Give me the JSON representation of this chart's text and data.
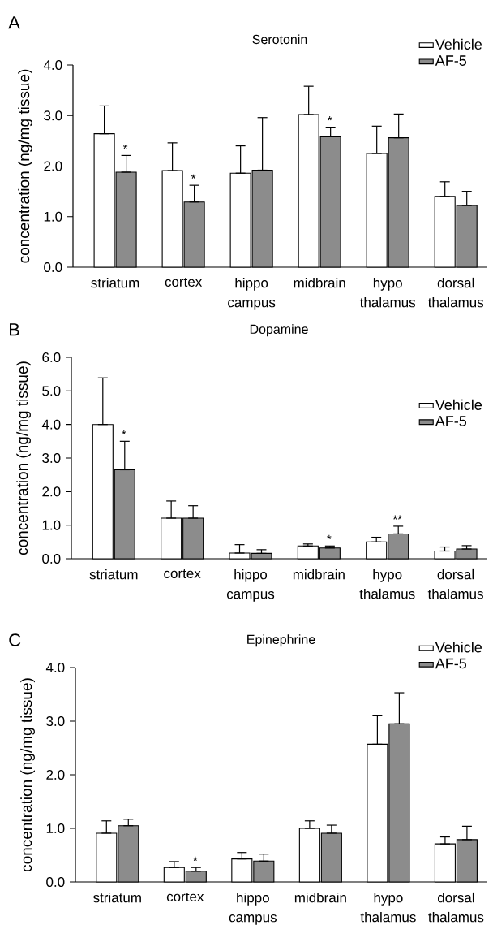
{
  "chart_data": [
    {
      "type": "bar",
      "title": "Serotonin",
      "ylabel": "concentration (ng/mg tissue)",
      "categories": [
        "striatum",
        "cortex",
        "hippo campus",
        "midbrain",
        "hypo thalamus",
        "dorsal thalamus"
      ],
      "series": [
        {
          "name": "Vehicle",
          "color": "#ffffff",
          "values": [
            2.64,
            1.91,
            1.86,
            3.02,
            2.25,
            1.4
          ],
          "errors": [
            [
              2.64,
              3.19
            ],
            [
              1.91,
              2.46
            ],
            [
              1.86,
              2.4
            ],
            [
              3.02,
              3.58
            ],
            [
              2.25,
              2.79
            ],
            [
              1.4,
              1.69
            ]
          ]
        },
        {
          "name": "AF-5",
          "color": "#8c8c8c",
          "values": [
            1.88,
            1.29,
            1.92,
            2.58,
            2.56,
            1.22
          ],
          "errors": [
            [
              1.88,
              2.21
            ],
            [
              1.29,
              1.62
            ],
            [
              1.92,
              2.96
            ],
            [
              2.58,
              2.77
            ],
            [
              2.56,
              3.03
            ],
            [
              1.22,
              1.5
            ]
          ]
        }
      ],
      "ylim": [
        0,
        4
      ],
      "yticks": [
        {
          "value": 0,
          "label": "0.0"
        },
        {
          "value": 1,
          "label": "1.0"
        },
        {
          "value": 2,
          "label": "2.0"
        },
        {
          "value": 3,
          "label": "3.0"
        },
        {
          "value": 4,
          "label": "4.0"
        }
      ],
      "legend": "top right",
      "annotations": [
        "A",
        {
          "text": "*",
          "x": "striatum",
          "y": 2.21
        },
        {
          "text": "*",
          "x": "cortex",
          "y": 1.62
        },
        {
          "text": "*",
          "x": "midbrain",
          "y": 2.77
        }
      ]
    },
    {
      "type": "bar",
      "title": "Dopamine",
      "ylabel": "concentration (ng/mg tissue)",
      "categories": [
        "striatum",
        "cortex",
        "hippo campus",
        "midbrain",
        "hypo thalamus",
        "dorsal thalamus"
      ],
      "series": [
        {
          "name": "Vehicle",
          "color": "#ffffff",
          "values": [
            4.0,
            1.21,
            0.17,
            0.38,
            0.5,
            0.23
          ],
          "errors": [
            [
              4.0,
              5.39
            ],
            [
              1.21,
              1.72
            ],
            [
              0.17,
              0.42
            ],
            [
              0.38,
              0.44
            ],
            [
              0.5,
              0.64
            ],
            [
              0.23,
              0.35
            ]
          ]
        },
        {
          "name": "AF-5",
          "color": "#8c8c8c",
          "values": [
            2.65,
            1.21,
            0.16,
            0.32,
            0.74,
            0.29
          ],
          "errors": [
            [
              2.65,
              3.5
            ],
            [
              1.21,
              1.58
            ],
            [
              0.16,
              0.27
            ],
            [
              0.32,
              0.38
            ],
            [
              0.74,
              0.97
            ],
            [
              0.29,
              0.39
            ]
          ]
        }
      ],
      "ylim": [
        0,
        6
      ],
      "yticks": [
        {
          "value": 0,
          "label": "0.0"
        },
        {
          "value": 1,
          "label": "1.0"
        },
        {
          "value": 2,
          "label": "2.0"
        },
        {
          "value": 3,
          "label": "3.0"
        },
        {
          "value": 4,
          "label": "4.0"
        },
        {
          "value": 5,
          "label": "5.0"
        },
        {
          "value": 6,
          "label": "6.0"
        }
      ],
      "legend": "right",
      "annotations": [
        "B",
        {
          "text": "*",
          "x": "striatum",
          "y": 3.5
        },
        {
          "text": "*",
          "x": "midbrain",
          "y": 0.38
        },
        {
          "text": "**",
          "x": "hypo thalamus",
          "y": 0.74
        }
      ]
    },
    {
      "type": "bar",
      "title": "Epinephrine",
      "ylabel": "concentration (ng/mg tissue)",
      "categories": [
        "striatum",
        "cortex",
        "hippo campus",
        "midbrain",
        "hypo thalamus",
        "dorsal thalamus"
      ],
      "series": [
        {
          "name": "Vehicle",
          "color": "#ffffff",
          "values": [
            0.91,
            0.27,
            0.43,
            1.0,
            2.57,
            0.71
          ],
          "errors": [
            [
              0.91,
              1.14
            ],
            [
              0.27,
              0.38
            ],
            [
              0.43,
              0.55
            ],
            [
              1.0,
              1.14
            ],
            [
              2.57,
              3.1
            ],
            [
              0.71,
              0.84
            ]
          ]
        },
        {
          "name": "AF-5",
          "color": "#8c8c8c",
          "values": [
            1.05,
            0.2,
            0.39,
            0.91,
            2.95,
            0.79
          ],
          "errors": [
            [
              1.05,
              1.17
            ],
            [
              0.2,
              0.27
            ],
            [
              0.39,
              0.52
            ],
            [
              0.91,
              1.06
            ],
            [
              2.95,
              3.53
            ],
            [
              0.79,
              1.04
            ]
          ]
        }
      ],
      "ylim": [
        0,
        4
      ],
      "yticks": [
        {
          "value": 0,
          "label": "0.0"
        },
        {
          "value": 1,
          "label": "1.0"
        },
        {
          "value": 2,
          "label": "2.0"
        },
        {
          "value": 3,
          "label": "3.0"
        },
        {
          "value": 4,
          "label": "4.0"
        }
      ],
      "legend": "top right",
      "annotations": [
        "C",
        {
          "text": "*",
          "x": "cortex",
          "y": 0.27
        }
      ]
    }
  ]
}
